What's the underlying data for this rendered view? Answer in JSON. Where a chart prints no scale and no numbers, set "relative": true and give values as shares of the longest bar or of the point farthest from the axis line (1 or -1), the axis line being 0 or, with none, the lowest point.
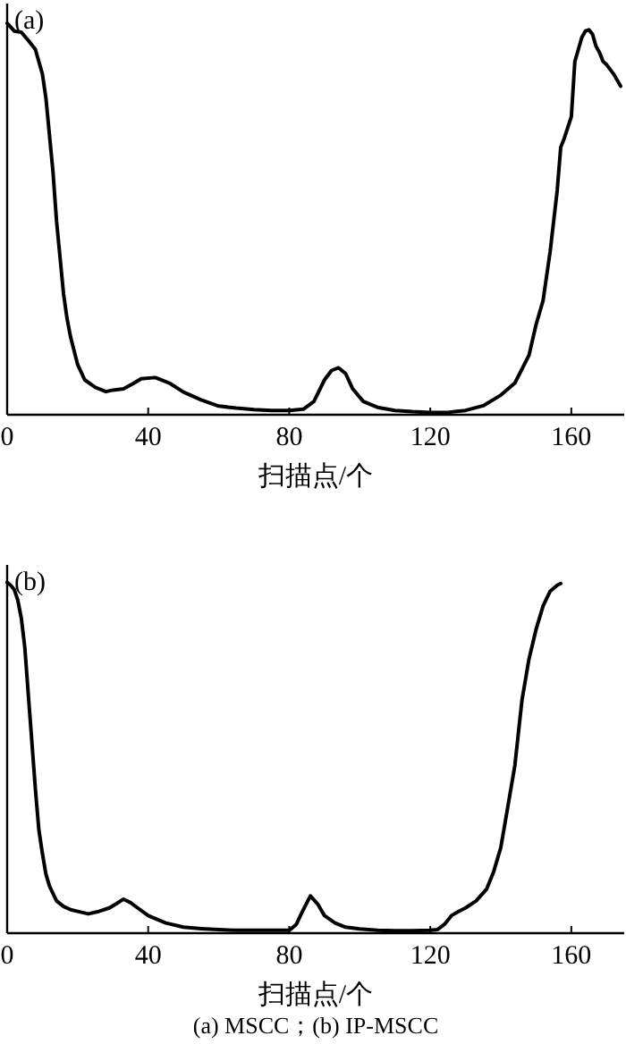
{
  "chart_data": [
    {
      "type": "line",
      "title": "(a)",
      "xlabel": "扫描点/个",
      "relative": true,
      "xlim": [
        0,
        175
      ],
      "xticks": [
        0,
        40,
        80,
        120,
        160
      ],
      "line_style": "solid",
      "marker": "none",
      "grid": false,
      "series": [
        {
          "color": "#000000",
          "x": [
            0,
            2,
            4,
            6,
            8,
            10,
            11,
            12,
            13,
            14,
            15,
            16,
            17,
            18,
            20,
            22,
            25,
            28,
            30,
            33,
            36,
            38,
            42,
            46,
            50,
            55,
            60,
            65,
            70,
            75,
            80,
            84,
            87,
            90,
            92,
            94,
            96,
            98,
            101,
            105,
            110,
            115,
            120,
            125,
            130,
            135,
            140,
            144,
            148,
            150,
            152,
            154,
            156,
            157,
            158,
            160,
            161,
            162,
            163,
            164,
            165,
            166,
            167,
            168,
            169,
            170,
            172,
            174
          ],
          "values": [
            1.0,
            0.98,
            0.977,
            0.956,
            0.933,
            0.87,
            0.808,
            0.714,
            0.62,
            0.495,
            0.402,
            0.308,
            0.245,
            0.198,
            0.128,
            0.089,
            0.07,
            0.059,
            0.063,
            0.066,
            0.081,
            0.092,
            0.095,
            0.081,
            0.058,
            0.038,
            0.022,
            0.017,
            0.013,
            0.011,
            0.011,
            0.014,
            0.034,
            0.089,
            0.113,
            0.12,
            0.105,
            0.066,
            0.034,
            0.019,
            0.011,
            0.008,
            0.006,
            0.006,
            0.011,
            0.023,
            0.05,
            0.081,
            0.152,
            0.23,
            0.292,
            0.417,
            0.573,
            0.683,
            0.706,
            0.761,
            0.902,
            0.933,
            0.964,
            0.98,
            0.983,
            0.972,
            0.941,
            0.925,
            0.902,
            0.894,
            0.87,
            0.839
          ]
        }
      ]
    },
    {
      "type": "line",
      "title": "(b)",
      "xlabel": "扫描点/个",
      "annotations": [
        "(a) MSCC；(b) IP-MSCC"
      ],
      "relative": true,
      "xlim": [
        0,
        175
      ],
      "xticks": [
        0,
        40,
        80,
        120,
        160
      ],
      "line_style": "solid",
      "marker": "none",
      "grid": false,
      "series": [
        {
          "color": "#000000",
          "x": [
            0,
            1,
            2,
            3,
            4,
            5,
            6,
            7,
            8,
            9,
            10,
            11,
            12,
            14,
            16,
            18,
            20,
            23,
            26,
            29,
            31,
            33,
            35,
            37,
            40,
            45,
            50,
            55,
            60,
            65,
            70,
            75,
            80,
            82,
            84,
            86,
            88,
            90,
            93,
            96,
            100,
            105,
            110,
            115,
            120,
            122,
            124,
            126,
            128,
            130,
            133,
            136,
            138,
            140,
            142,
            144,
            146,
            148,
            150,
            152,
            154,
            156,
            157
          ],
          "values": [
            1.0,
            0.992,
            0.98,
            0.95,
            0.899,
            0.815,
            0.681,
            0.546,
            0.412,
            0.294,
            0.227,
            0.168,
            0.134,
            0.092,
            0.076,
            0.067,
            0.062,
            0.055,
            0.062,
            0.072,
            0.084,
            0.097,
            0.087,
            0.072,
            0.05,
            0.029,
            0.017,
            0.013,
            0.01,
            0.008,
            0.008,
            0.008,
            0.008,
            0.025,
            0.067,
            0.106,
            0.084,
            0.05,
            0.029,
            0.017,
            0.012,
            0.008,
            0.007,
            0.007,
            0.008,
            0.01,
            0.025,
            0.05,
            0.062,
            0.072,
            0.092,
            0.126,
            0.176,
            0.244,
            0.361,
            0.479,
            0.664,
            0.782,
            0.866,
            0.933,
            0.975,
            0.992,
            0.997
          ]
        }
      ]
    }
  ]
}
